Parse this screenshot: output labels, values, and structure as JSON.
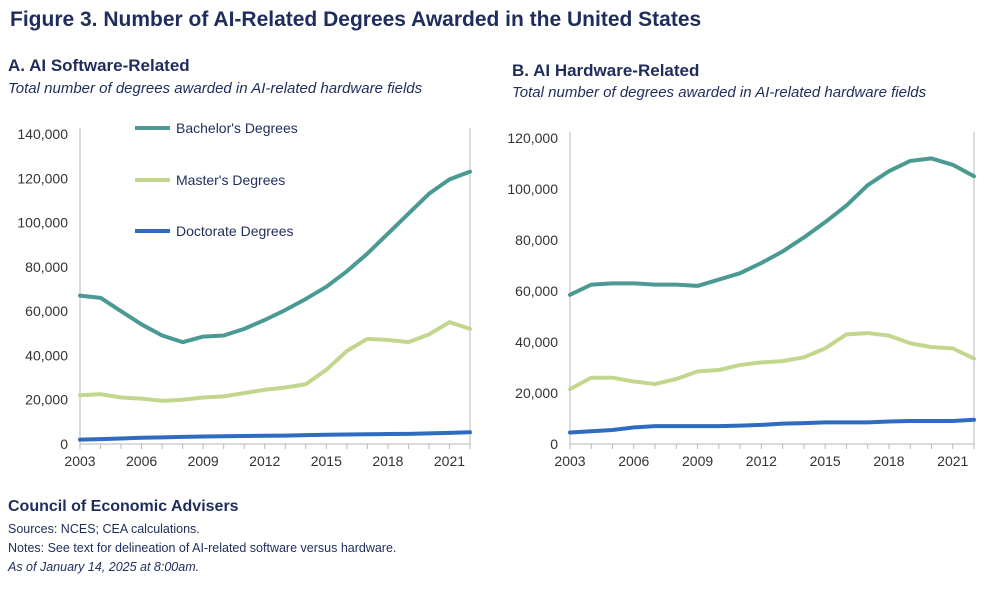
{
  "figure": {
    "title": "Figure 3. Number of AI-Related Degrees Awarded in the United States"
  },
  "panels": [
    {
      "title": "A. AI Software-Related",
      "subtitle": "Total number of degrees awarded in AI-related hardware fields"
    },
    {
      "title": "B. AI Hardware-Related",
      "subtitle": "Total number of degrees awarded in AI-related hardware fields"
    }
  ],
  "footer": {
    "source_org": "Council of Economic Advisers",
    "sources": "Sources: NCES; CEA calculations.",
    "notes": "Notes: See text for delineation of AI-related software versus hardware.",
    "as_of": "As of January 14, 2025 at 8:00am."
  },
  "colors": {
    "bachelors": "#4a9a93",
    "masters": "#c3d68d",
    "doctorate": "#2f6bbf",
    "axis": "#b9b9b9",
    "tick_text": "#333333"
  },
  "chart_data": [
    {
      "type": "line",
      "title": "A. AI Software-Related",
      "subtitle": "Total number of degrees awarded in AI-related hardware fields",
      "x": [
        2003,
        2004,
        2005,
        2006,
        2007,
        2008,
        2009,
        2010,
        2011,
        2012,
        2013,
        2014,
        2015,
        2016,
        2017,
        2018,
        2019,
        2020,
        2021,
        2022
      ],
      "x_ticks": [
        "2003",
        "2006",
        "2009",
        "2012",
        "2015",
        "2018",
        "2021"
      ],
      "y_ticks": [
        "0",
        "20,000",
        "40,000",
        "60,000",
        "80,000",
        "100,000",
        "120,000",
        "140,000"
      ],
      "ylim": [
        0,
        140000
      ],
      "legend_position": "top-left",
      "grid": false,
      "series": [
        {
          "name": "Bachelor's Degrees",
          "color_key": "bachelors",
          "values": [
            67000,
            66000,
            60000,
            54000,
            49000,
            46000,
            48500,
            49000,
            52000,
            56000,
            60500,
            65500,
            71000,
            78000,
            86000,
            95000,
            104000,
            113000,
            119500,
            123000
          ]
        },
        {
          "name": "Master's Degrees",
          "color_key": "masters",
          "values": [
            22000,
            22500,
            21000,
            20500,
            19500,
            20000,
            21000,
            21500,
            23000,
            24500,
            25500,
            27000,
            33500,
            42000,
            47500,
            47000,
            46000,
            49500,
            55000,
            52000
          ]
        },
        {
          "name": "Doctorate Degrees",
          "color_key": "doctorate",
          "values": [
            2000,
            2200,
            2500,
            2800,
            3000,
            3200,
            3400,
            3500,
            3600,
            3700,
            3800,
            4000,
            4200,
            4300,
            4400,
            4500,
            4600,
            4800,
            5000,
            5300
          ]
        }
      ]
    },
    {
      "type": "line",
      "title": "B. AI Hardware-Related",
      "subtitle": "Total number of degrees awarded in AI-related hardware fields",
      "x": [
        2003,
        2004,
        2005,
        2006,
        2007,
        2008,
        2009,
        2010,
        2011,
        2012,
        2013,
        2014,
        2015,
        2016,
        2017,
        2018,
        2019,
        2020,
        2021,
        2022
      ],
      "x_ticks": [
        "2003",
        "2006",
        "2009",
        "2012",
        "2015",
        "2018",
        "2021"
      ],
      "y_ticks": [
        "0",
        "20,000",
        "40,000",
        "60,000",
        "80,000",
        "100,000",
        "120,000"
      ],
      "ylim": [
        0,
        120000
      ],
      "grid": false,
      "series": [
        {
          "name": "Bachelor's Degrees",
          "color_key": "bachelors",
          "values": [
            58500,
            62500,
            63000,
            63000,
            62500,
            62500,
            62000,
            64500,
            67000,
            71000,
            75500,
            81000,
            87000,
            93500,
            101500,
            107000,
            111000,
            112000,
            109500,
            105000
          ]
        },
        {
          "name": "Master's Degrees",
          "color_key": "masters",
          "values": [
            21500,
            26000,
            26000,
            24500,
            23500,
            25500,
            28500,
            29000,
            31000,
            32000,
            32500,
            34000,
            37500,
            43000,
            43500,
            42500,
            39500,
            38000,
            37500,
            33500
          ]
        },
        {
          "name": "Doctorate Degrees",
          "color_key": "doctorate",
          "values": [
            4500,
            5000,
            5500,
            6500,
            7000,
            7000,
            7000,
            7000,
            7200,
            7500,
            8000,
            8200,
            8500,
            8500,
            8500,
            8800,
            9000,
            9000,
            9000,
            9500
          ]
        }
      ]
    }
  ]
}
